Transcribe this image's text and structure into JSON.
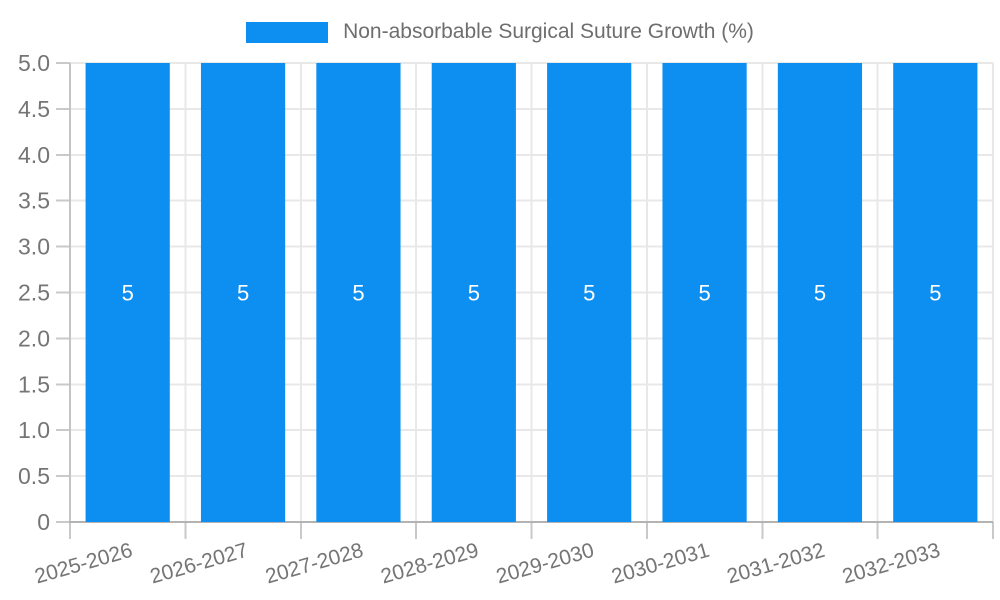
{
  "legend": {
    "label": "Non-absorbable Surgical Suture Growth (%)"
  },
  "colors": {
    "bar": "#0d8ff2",
    "grid": "#e8e8e8",
    "tick": "#c9c9c9",
    "axis_bottom": "#b3b3b3",
    "axis_left": "#c4c4c4",
    "tick_text": "#757575",
    "title_text": "#6e6e6e",
    "bar_label": "#ffffff",
    "background": "#ffffff"
  },
  "chart_data": {
    "type": "bar",
    "title": "Non-absorbable Surgical Suture Growth (%)",
    "xlabel": "",
    "ylabel": "",
    "categories": [
      "2025-2026",
      "2026-2027",
      "2027-2028",
      "2028-2029",
      "2029-2030",
      "2030-2031",
      "2031-2032",
      "2032-2033"
    ],
    "values": [
      5,
      5,
      5,
      5,
      5,
      5,
      5,
      5
    ],
    "bar_labels": [
      "5",
      "5",
      "5",
      "5",
      "5",
      "5",
      "5",
      "5"
    ],
    "ylim": [
      0,
      5
    ],
    "ytick_step": 0.5,
    "ytick_labels": [
      "0",
      "0.5",
      "1.0",
      "1.5",
      "2.0",
      "2.5",
      "3.0",
      "3.5",
      "4.0",
      "4.5",
      "5.0"
    ],
    "grid": "on",
    "legend_position": "top",
    "x_label_rotation_deg": -16
  }
}
